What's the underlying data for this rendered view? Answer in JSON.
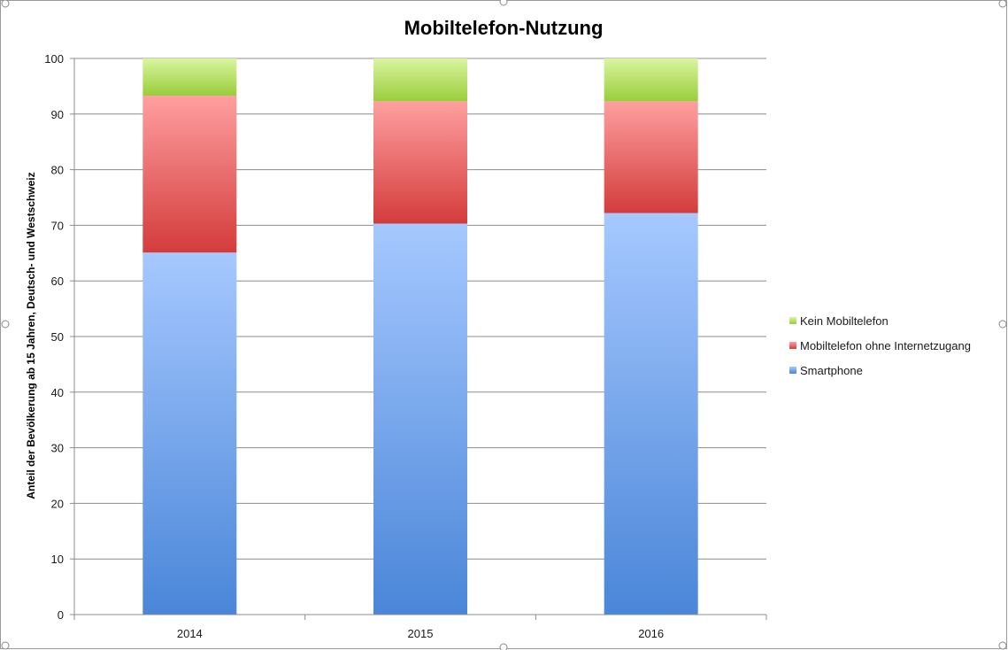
{
  "chart_data": {
    "type": "bar",
    "stacked": true,
    "title": "Mobiltelefon-Nutzung",
    "xlabel": "",
    "ylabel": "Anteil der Bevölkerung ab 15 Jahren, Deutsch- und Westschweiz",
    "categories": [
      "2014",
      "2015",
      "2016"
    ],
    "ylim": [
      0,
      100
    ],
    "yticks": [
      "0",
      "10",
      "20",
      "30",
      "40",
      "50",
      "60",
      "70",
      "80",
      "90",
      "100"
    ],
    "grid": true,
    "legend_position": "right",
    "series": [
      {
        "name": "Smartphone",
        "values": [
          65.1,
          70.3,
          72.2
        ],
        "color": "#4a86d8",
        "color_light": "#a6c8ff"
      },
      {
        "name": "Mobiltelefon ohne Internetzugang",
        "values": [
          28.2,
          22.0,
          20.1
        ],
        "color": "#d43c3c",
        "color_light": "#ff9f9f"
      },
      {
        "name": "Kein Mobiltelefon",
        "values": [
          6.7,
          7.7,
          7.7
        ],
        "color": "#9acd3c",
        "color_light": "#d9f5a0"
      }
    ],
    "legend_order": [
      "Kein Mobiltelefon",
      "Mobiltelefon ohne Internetzugang",
      "Smartphone"
    ]
  }
}
